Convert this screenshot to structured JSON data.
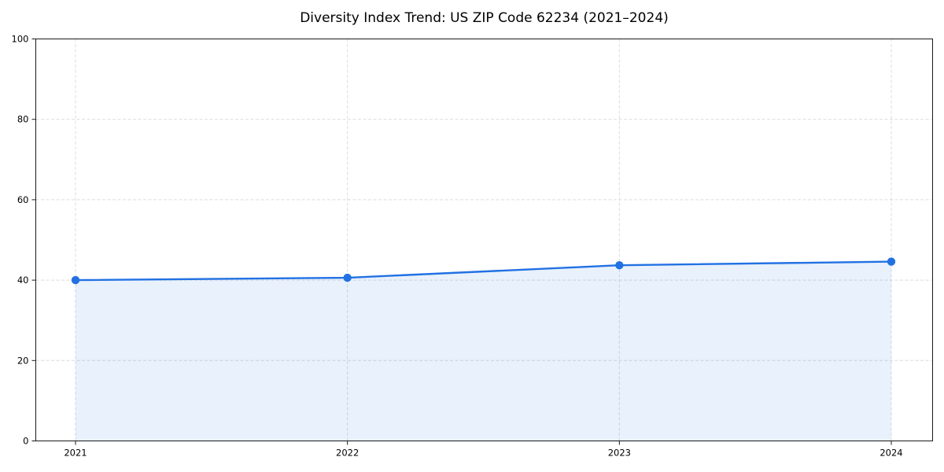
{
  "title": "Diversity Index Trend: US ZIP Code 62234 (2021–2024)",
  "chart_data": {
    "type": "line",
    "title": "Diversity Index Trend: US ZIP Code 62234 (2021–2024)",
    "x": [
      "2021",
      "2022",
      "2023",
      "2024"
    ],
    "series": [
      {
        "name": "Diversity Index",
        "values": [
          40.0,
          40.6,
          43.7,
          44.6
        ]
      }
    ],
    "xlabel": "",
    "ylabel": "",
    "ylim": [
      0,
      100
    ],
    "yticks": [
      0,
      20,
      40,
      60,
      80,
      100
    ],
    "grid": "dashed-both-axes",
    "legend": "none",
    "marker": "circle",
    "area_fill": true,
    "colors": {
      "line": "#2271e3",
      "marker": "#2271e3",
      "area": "rgba(34,113,227,0.10)",
      "grid": "#dcdcdc",
      "spine": "#1a1a1a",
      "text": "#000000"
    }
  }
}
